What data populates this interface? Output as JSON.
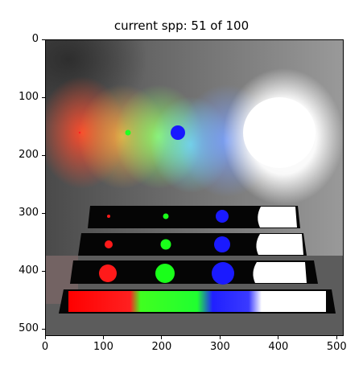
{
  "title": "current spp: 51 of 100",
  "image_panel": {
    "description_icon": "rendered-scene-image",
    "x_ticks": [
      "0",
      "100",
      "200",
      "300",
      "400",
      "500"
    ],
    "y_ticks": [
      "0",
      "100",
      "200",
      "300",
      "400",
      "500"
    ],
    "x_tick_values": [
      0,
      100,
      200,
      300,
      400,
      500
    ],
    "y_tick_values": [
      0,
      100,
      200,
      300,
      400,
      500
    ],
    "xlim": [
      0,
      512
    ],
    "ylim": [
      512,
      0
    ]
  },
  "colors": {
    "red": "#ff1a1a",
    "green": "#1aff1a",
    "blue": "#1a1aff",
    "white": "#ffffff",
    "backdrop": "#7a7a7a",
    "floor": "#5a5a5a"
  }
}
